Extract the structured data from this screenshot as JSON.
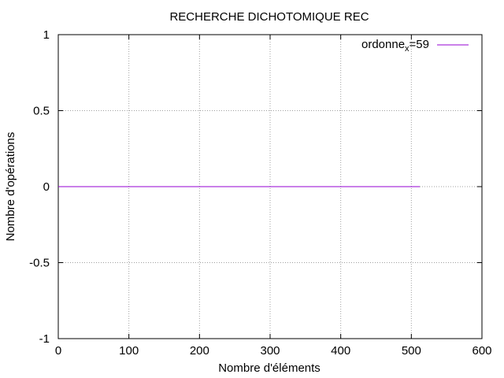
{
  "chart_data": {
    "type": "line",
    "title": "RECHERCHE DICHOTOMIQUE REC",
    "xlabel": "Nombre d'éléments",
    "ylabel": "Nombre d'opérations",
    "xlim": [
      0,
      600
    ],
    "ylim": [
      -1,
      1
    ],
    "x_ticks": [
      "0",
      "100",
      "200",
      "300",
      "400",
      "500",
      "600"
    ],
    "y_ticks": [
      "1",
      "0.5",
      "0",
      "-0.5",
      "-1"
    ],
    "grid": true,
    "legend_position": "top-right",
    "series": [
      {
        "name": "ordonne_x=59",
        "legend": {
          "main": "ordonne",
          "sub": "x",
          "rest": "=59"
        },
        "color": "#9400d3",
        "x": [
          0,
          512
        ],
        "y": [
          0,
          0
        ]
      }
    ]
  }
}
